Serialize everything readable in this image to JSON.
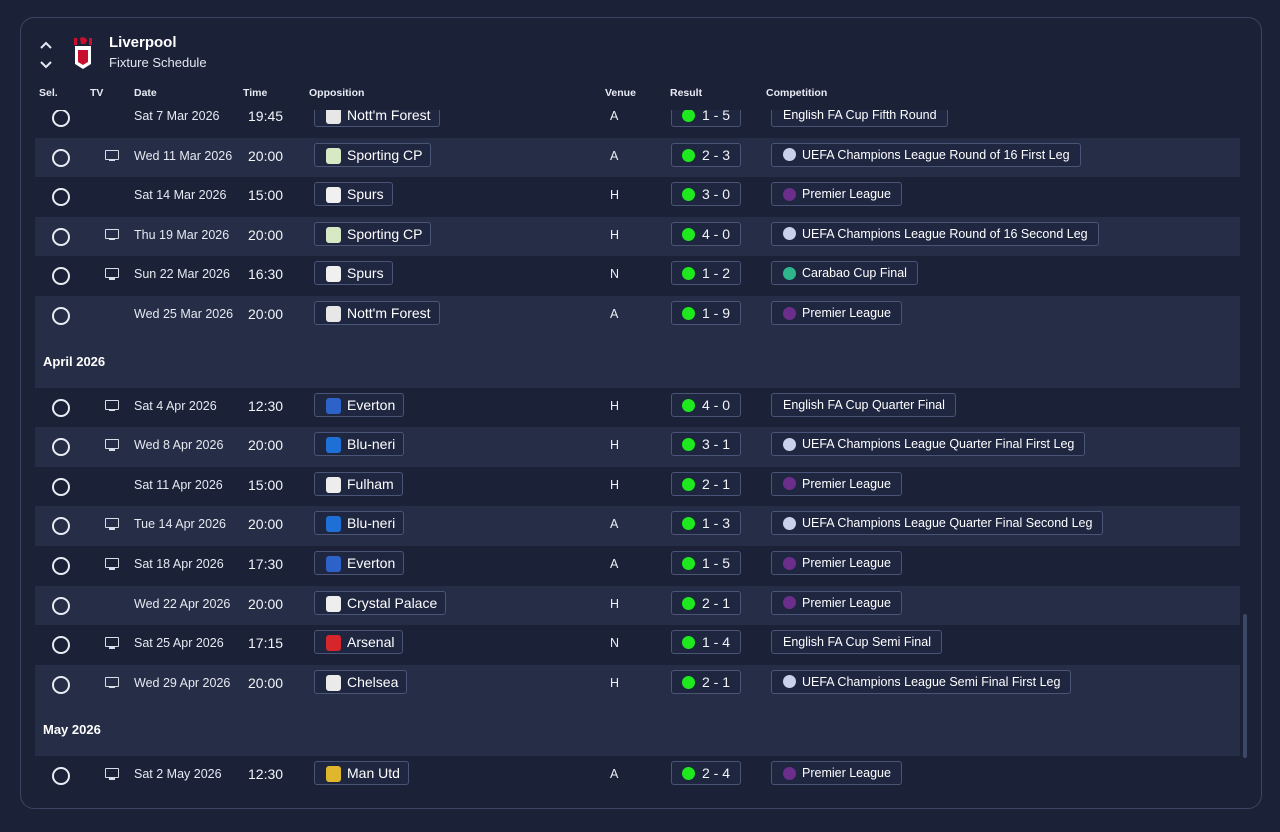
{
  "club": {
    "name": "Liverpool",
    "subtitle": "Fixture Schedule"
  },
  "columns": {
    "sel": "Sel.",
    "tv": "TV",
    "date": "Date",
    "time": "Time",
    "opposition": "Opposition",
    "venue": "Venue",
    "result": "Result",
    "competition": "Competition"
  },
  "colors": {
    "win": "#1ee81e",
    "panel": "#1b2238",
    "row_alt": "#262e47"
  },
  "march_rows": [
    {
      "tv": false,
      "date": "Sat 7 Mar 2026",
      "time": "19:45",
      "opp": "Nott'm Forest",
      "badge": "forest-badge-icon",
      "venue": "A",
      "result": "1 - 5",
      "comp": "English FA Cup Fifth Round",
      "comp_icon": ""
    },
    {
      "tv": true,
      "date": "Wed 11 Mar 2026",
      "time": "20:00",
      "opp": "Sporting CP",
      "badge": "sporting-badge-icon",
      "venue": "A",
      "result": "2 - 3",
      "comp": "UEFA Champions League Round of 16  First Leg",
      "comp_icon": "ucl-icon"
    },
    {
      "tv": false,
      "date": "Sat 14 Mar 2026",
      "time": "15:00",
      "opp": "Spurs",
      "badge": "spurs-badge-icon",
      "venue": "H",
      "result": "3 - 0",
      "comp": "Premier League",
      "comp_icon": "premier-league-icon"
    },
    {
      "tv": true,
      "date": "Thu 19 Mar 2026",
      "time": "20:00",
      "opp": "Sporting CP",
      "badge": "sporting-badge-icon",
      "venue": "H",
      "result": "4 - 0",
      "comp": "UEFA Champions League Round of 16  Second Leg",
      "comp_icon": "ucl-icon"
    },
    {
      "tv": true,
      "date": "Sun 22 Mar 2026",
      "time": "16:30",
      "opp": "Spurs",
      "badge": "spurs-badge-icon",
      "venue": "N",
      "result": "1 - 2",
      "comp": "Carabao Cup Final",
      "comp_icon": "carabao-cup-icon"
    },
    {
      "tv": false,
      "date": "Wed 25 Mar 2026",
      "time": "20:00",
      "opp": "Nott'm Forest",
      "badge": "forest-badge-icon",
      "venue": "A",
      "result": "1 - 9",
      "comp": "Premier League",
      "comp_icon": "premier-league-icon"
    }
  ],
  "april_label": "April 2026",
  "april_rows": [
    {
      "tv": true,
      "date": "Sat 4 Apr 2026",
      "time": "12:30",
      "opp": "Everton",
      "badge": "everton-badge-icon",
      "venue": "H",
      "result": "4 - 0",
      "comp": "English FA Cup Quarter Final",
      "comp_icon": ""
    },
    {
      "tv": true,
      "date": "Wed 8 Apr 2026",
      "time": "20:00",
      "opp": "Blu-neri",
      "badge": "bluneri-badge-icon",
      "venue": "H",
      "result": "3 - 1",
      "comp": "UEFA Champions League Quarter Final First Leg",
      "comp_icon": "ucl-icon"
    },
    {
      "tv": false,
      "date": "Sat 11 Apr 2026",
      "time": "15:00",
      "opp": "Fulham",
      "badge": "fulham-badge-icon",
      "venue": "H",
      "result": "2 - 1",
      "comp": "Premier League",
      "comp_icon": "premier-league-icon"
    },
    {
      "tv": true,
      "date": "Tue 14 Apr 2026",
      "time": "20:00",
      "opp": "Blu-neri",
      "badge": "bluneri-badge-icon",
      "venue": "A",
      "result": "1 - 3",
      "comp": "UEFA Champions League Quarter Final Second Leg",
      "comp_icon": "ucl-icon"
    },
    {
      "tv": true,
      "date": "Sat 18 Apr 2026",
      "time": "17:30",
      "opp": "Everton",
      "badge": "everton-badge-icon",
      "venue": "A",
      "result": "1 - 5",
      "comp": "Premier League",
      "comp_icon": "premier-league-icon"
    },
    {
      "tv": false,
      "date": "Wed 22 Apr 2026",
      "time": "20:00",
      "opp": "Crystal Palace",
      "badge": "palace-badge-icon",
      "venue": "H",
      "result": "2 - 1",
      "comp": "Premier League",
      "comp_icon": "premier-league-icon"
    },
    {
      "tv": true,
      "date": "Sat 25 Apr 2026",
      "time": "17:15",
      "opp": "Arsenal",
      "badge": "arsenal-badge-icon",
      "venue": "N",
      "result": "1 - 4",
      "comp": "English FA Cup Semi Final",
      "comp_icon": ""
    },
    {
      "tv": true,
      "date": "Wed 29 Apr 2026",
      "time": "20:00",
      "opp": "Chelsea",
      "badge": "chelsea-badge-icon",
      "venue": "H",
      "result": "2 - 1",
      "comp": "UEFA Champions League Semi Final First Leg",
      "comp_icon": "ucl-icon"
    }
  ],
  "may_label": "May 2026",
  "may_rows": [
    {
      "tv": true,
      "date": "Sat 2 May 2026",
      "time": "12:30",
      "opp": "Man Utd",
      "badge": "manutd-badge-icon",
      "venue": "A",
      "result": "2 - 4",
      "comp": "Premier League",
      "comp_icon": "premier-league-icon"
    }
  ]
}
